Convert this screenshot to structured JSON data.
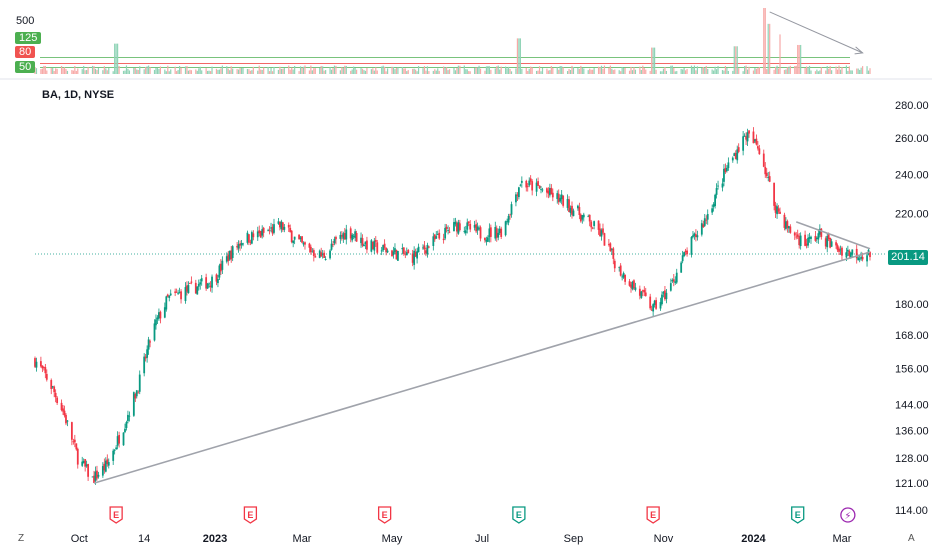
{
  "symbol_label": "BA, 1D, NYSE",
  "last_price": "201.14",
  "volume_panel": {
    "top_label": "500",
    "levels": [
      {
        "label": "125",
        "color": "#4caf50"
      },
      {
        "label": "80",
        "color": "#f05350"
      },
      {
        "label": "50",
        "color": "#4caf50"
      }
    ]
  },
  "corner_labels": {
    "left": "Z",
    "right": "A"
  },
  "colors": {
    "up": "#089981",
    "down": "#f23645",
    "trendline": "#b2b5be",
    "price_line": "#089981",
    "earnings": "#f23645",
    "earnings_up": "#089981",
    "dividend": "#9c27b0"
  },
  "chart_data": {
    "type": "candlestick",
    "title": "",
    "ylabel": "",
    "y_scale": "log",
    "ylim": [
      112,
      283
    ],
    "y_ticks": [
      "280.00",
      "260.00",
      "240.00",
      "220.00",
      "180.00",
      "168.00",
      "156.00",
      "144.00",
      "136.00",
      "128.00",
      "121.00",
      "114.00"
    ],
    "x_ticks": [
      {
        "label": "Oct",
        "bold": false
      },
      {
        "label": "14",
        "bold": false
      },
      {
        "label": "2023",
        "bold": true
      },
      {
        "label": "Mar",
        "bold": false
      },
      {
        "label": "May",
        "bold": false
      },
      {
        "label": "Jul",
        "bold": false
      },
      {
        "label": "Sep",
        "bold": false
      },
      {
        "label": "Nov",
        "bold": false
      },
      {
        "label": "2024",
        "bold": true
      },
      {
        "label": "Mar",
        "bold": false
      }
    ],
    "x_range": [
      "2022-09-01",
      "2024-03-20"
    ],
    "tick_dates": [
      "2022-10-01",
      "2022-11-14",
      "2023-01-01",
      "2023-03-01",
      "2023-05-01",
      "2023-07-01",
      "2023-09-01",
      "2023-11-01",
      "2024-01-01",
      "2024-03-01"
    ],
    "close_path": [
      [
        "2022-09-01",
        159
      ],
      [
        "2022-09-10",
        152
      ],
      [
        "2022-09-20",
        142
      ],
      [
        "2022-09-30",
        128
      ],
      [
        "2022-10-10",
        122
      ],
      [
        "2022-10-20",
        126
      ],
      [
        "2022-10-30",
        136
      ],
      [
        "2022-11-10",
        150
      ],
      [
        "2022-11-20",
        170
      ],
      [
        "2022-11-30",
        182
      ],
      [
        "2022-12-15",
        186
      ],
      [
        "2022-12-31",
        190
      ],
      [
        "2023-01-10",
        200
      ],
      [
        "2023-01-20",
        208
      ],
      [
        "2023-02-01",
        210
      ],
      [
        "2023-02-15",
        214
      ],
      [
        "2023-03-01",
        205
      ],
      [
        "2023-03-15",
        200
      ],
      [
        "2023-04-01",
        212
      ],
      [
        "2023-04-15",
        205
      ],
      [
        "2023-05-01",
        202
      ],
      [
        "2023-05-15",
        200
      ],
      [
        "2023-06-01",
        208
      ],
      [
        "2023-06-15",
        215
      ],
      [
        "2023-07-01",
        210
      ],
      [
        "2023-07-15",
        212
      ],
      [
        "2023-07-27",
        236
      ],
      [
        "2023-08-10",
        232
      ],
      [
        "2023-08-25",
        226
      ],
      [
        "2023-09-05",
        220
      ],
      [
        "2023-09-20",
        210
      ],
      [
        "2023-10-01",
        195
      ],
      [
        "2023-10-15",
        185
      ],
      [
        "2023-10-25",
        178
      ],
      [
        "2023-11-05",
        186
      ],
      [
        "2023-11-15",
        200
      ],
      [
        "2023-11-30",
        218
      ],
      [
        "2023-12-15",
        245
      ],
      [
        "2023-12-27",
        262
      ],
      [
        "2024-01-05",
        254
      ],
      [
        "2024-01-15",
        225
      ],
      [
        "2024-01-25",
        212
      ],
      [
        "2024-02-05",
        206
      ],
      [
        "2024-02-15",
        210
      ],
      [
        "2024-02-25",
        204
      ],
      [
        "2024-03-05",
        202
      ],
      [
        "2024-03-15",
        201
      ]
    ],
    "trendlines": [
      {
        "from": [
          "2022-10-11",
          121
        ],
        "to": [
          "2024-03-20",
          202
        ]
      },
      {
        "from": [
          "2024-01-30",
          216
        ],
        "to": [
          "2024-03-20",
          203.5
        ]
      }
    ],
    "last_price": 201.14,
    "volume": {
      "levels": [
        125,
        80,
        50
      ],
      "max": 500,
      "spikes": [
        [
          "2022-10-26",
          230
        ],
        [
          "2023-07-26",
          270
        ],
        [
          "2023-10-25",
          200
        ],
        [
          "2023-12-20",
          210
        ],
        [
          "2024-01-08",
          500
        ],
        [
          "2024-01-12",
          380
        ],
        [
          "2024-01-20",
          300
        ],
        [
          "2024-02-01",
          220
        ]
      ],
      "trendline": {
        "from": [
          "2024-01-12",
          470
        ],
        "to": [
          "2024-03-15",
          160
        ]
      }
    },
    "events": [
      {
        "type": "earnings",
        "date": "2022-10-26",
        "label": "E",
        "color": "#f23645"
      },
      {
        "type": "earnings",
        "date": "2023-01-25",
        "label": "E",
        "color": "#f23645"
      },
      {
        "type": "earnings",
        "date": "2023-04-26",
        "label": "E",
        "color": "#f23645"
      },
      {
        "type": "earnings",
        "date": "2023-07-26",
        "label": "E",
        "color": "#089981"
      },
      {
        "type": "earnings",
        "date": "2023-10-25",
        "label": "E",
        "color": "#f23645"
      },
      {
        "type": "earnings",
        "date": "2024-01-31",
        "label": "E",
        "color": "#089981"
      },
      {
        "type": "dividend",
        "date": "2024-03-05",
        "label": "⚡",
        "color": "#9c27b0"
      }
    ]
  }
}
